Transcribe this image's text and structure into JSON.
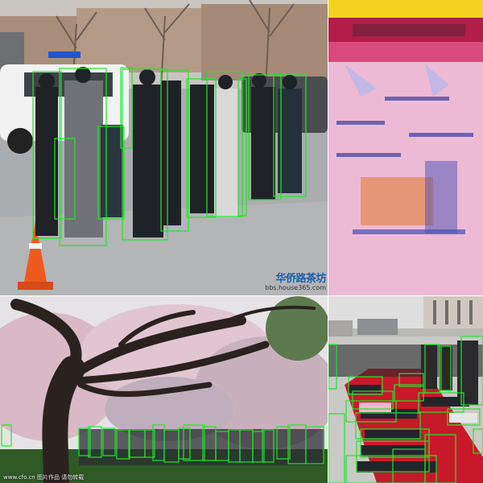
{
  "panels": {
    "street": {
      "watermark_logo": "华侨路茶坊",
      "watermark_url": "bbs.house365.com"
    },
    "stage": {},
    "park": {
      "watermark": "www.cfo.cn 图片作品 请勿转载"
    },
    "carpet": {}
  },
  "colors": {
    "bounding_box": "#22e52a",
    "street_ground": "#a9acaf",
    "stage_floor": "#eebfd9",
    "park_grass": "#2f5a26",
    "carpet_red": "#c8192a"
  }
}
